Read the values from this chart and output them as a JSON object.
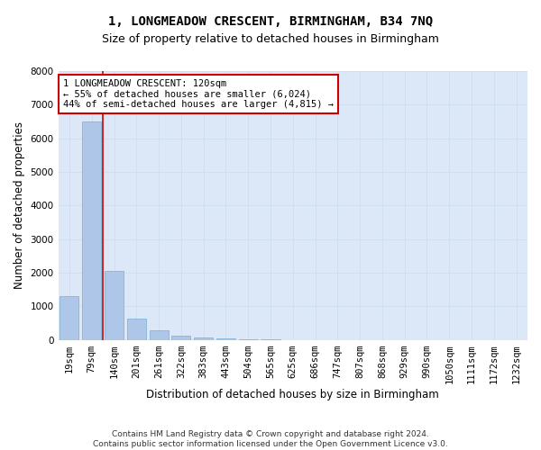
{
  "title": "1, LONGMEADOW CRESCENT, BIRMINGHAM, B34 7NQ",
  "subtitle": "Size of property relative to detached houses in Birmingham",
  "xlabel": "Distribution of detached houses by size in Birmingham",
  "ylabel": "Number of detached properties",
  "bar_labels": [
    "19sqm",
    "79sqm",
    "140sqm",
    "201sqm",
    "261sqm",
    "322sqm",
    "383sqm",
    "443sqm",
    "504sqm",
    "565sqm",
    "625sqm",
    "686sqm",
    "747sqm",
    "807sqm",
    "868sqm",
    "929sqm",
    "990sqm",
    "1050sqm",
    "1111sqm",
    "1172sqm",
    "1232sqm"
  ],
  "bar_values": [
    1300,
    6500,
    2050,
    650,
    280,
    130,
    80,
    45,
    28,
    16,
    8,
    4,
    2,
    2,
    1,
    1,
    0,
    0,
    0,
    0,
    0
  ],
  "bar_color": "#aec6e8",
  "bar_edge_color": "#7aafd4",
  "grid_color": "#d0dff0",
  "background_color": "#dce8f8",
  "fig_background": "#ffffff",
  "red_line_x": 1.5,
  "annotation_text": "1 LONGMEADOW CRESCENT: 120sqm\n← 55% of detached houses are smaller (6,024)\n44% of semi-detached houses are larger (4,815) →",
  "annotation_box_color": "#ffffff",
  "annotation_border_color": "#cc0000",
  "footer_text": "Contains HM Land Registry data © Crown copyright and database right 2024.\nContains public sector information licensed under the Open Government Licence v3.0.",
  "ylim": [
    0,
    8000
  ],
  "title_fontsize": 10,
  "subtitle_fontsize": 9,
  "axis_label_fontsize": 8.5,
  "tick_fontsize": 7.5,
  "footer_fontsize": 6.5,
  "annotation_fontsize": 7.5
}
